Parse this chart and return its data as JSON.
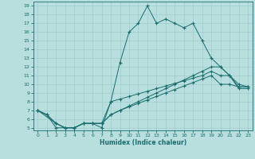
{
  "xlabel": "Humidex (Indice chaleur)",
  "xlim": [
    -0.5,
    23.5
  ],
  "ylim": [
    4.7,
    19.5
  ],
  "yticks": [
    5,
    6,
    7,
    8,
    9,
    10,
    11,
    12,
    13,
    14,
    15,
    16,
    17,
    18,
    19
  ],
  "xticks": [
    0,
    1,
    2,
    3,
    4,
    5,
    6,
    7,
    8,
    9,
    10,
    11,
    12,
    13,
    14,
    15,
    16,
    17,
    18,
    19,
    20,
    21,
    22,
    23
  ],
  "background_color": "#b8dede",
  "grid_color": "#9ecece",
  "line_color": "#1a6e6e",
  "line1_x": [
    0,
    1,
    2,
    3,
    4,
    5,
    6,
    7,
    8,
    9,
    10,
    11,
    12,
    13,
    14,
    15,
    16,
    17,
    18,
    19,
    20,
    21,
    22,
    23
  ],
  "line1_y": [
    7,
    6.5,
    5,
    5,
    5,
    5.5,
    5.5,
    5,
    8,
    12.5,
    16,
    17,
    19,
    17,
    17.5,
    17,
    16.5,
    17,
    15,
    13,
    12,
    11,
    9.5,
    9.5
  ],
  "line2_x": [
    0,
    1,
    2,
    3,
    4,
    5,
    6,
    7,
    8,
    9,
    10,
    11,
    12,
    13,
    14,
    15,
    16,
    17,
    18,
    19,
    20,
    21,
    22,
    23
  ],
  "line2_y": [
    7.0,
    6.5,
    5.5,
    5.0,
    5.0,
    5.5,
    5.5,
    5.5,
    8.0,
    8.3,
    8.6,
    8.9,
    9.2,
    9.5,
    9.8,
    10.1,
    10.4,
    10.7,
    11.0,
    11.5,
    11.0,
    11.0,
    9.7,
    9.7
  ],
  "line3_x": [
    0,
    2,
    3,
    4,
    5,
    6,
    7,
    8,
    9,
    10,
    11,
    12,
    13,
    14,
    15,
    16,
    17,
    18,
    19,
    20,
    21,
    22,
    23
  ],
  "line3_y": [
    7.0,
    5.5,
    5.0,
    5.0,
    5.5,
    5.5,
    5.5,
    6.5,
    7.0,
    7.5,
    8.0,
    8.5,
    9.0,
    9.5,
    10.0,
    10.5,
    11.0,
    11.5,
    12.0,
    12.0,
    11.0,
    10.0,
    9.7
  ],
  "line4_x": [
    0,
    1,
    2,
    3,
    4,
    5,
    6,
    7,
    8,
    9,
    10,
    11,
    12,
    13,
    14,
    15,
    16,
    17,
    18,
    19,
    20,
    21,
    22,
    23
  ],
  "line4_y": [
    7.0,
    6.5,
    5.5,
    5.0,
    5.0,
    5.5,
    5.5,
    5.5,
    6.5,
    7.0,
    7.4,
    7.8,
    8.2,
    8.6,
    9.0,
    9.4,
    9.8,
    10.2,
    10.6,
    11.0,
    10.0,
    10.0,
    9.7,
    9.7
  ]
}
